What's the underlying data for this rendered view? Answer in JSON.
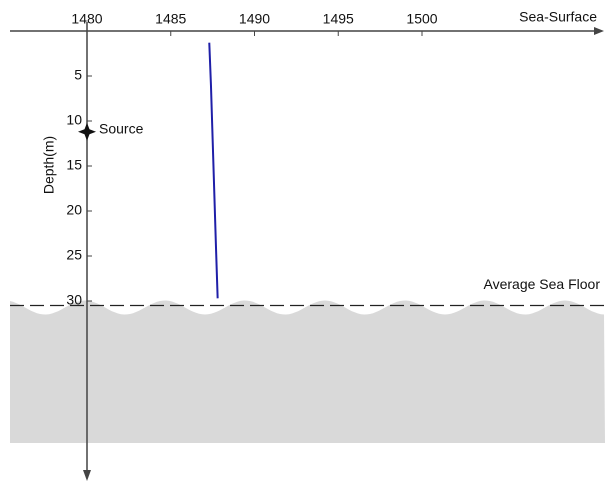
{
  "chart_data": {
    "type": "line",
    "x_axis_label": "Sea-Surface",
    "y_axis_label": "Depth(m)",
    "x": [
      1487.3,
      1487.4,
      1487.5,
      1487.6,
      1487.7,
      1487.8
    ],
    "series": [
      {
        "color": "#1f1fa8",
        "values": [
          1.3,
          6,
          12,
          18,
          24,
          29.7
        ]
      }
    ],
    "xlim": [
      1480,
      1500
    ],
    "xticks": [
      1480,
      1485,
      1490,
      1495,
      1500
    ],
    "ylim": [
      0,
      30
    ],
    "yticks": [
      5,
      10,
      15,
      20,
      25,
      30
    ],
    "y_inverted": true,
    "source": {
      "label": "Source",
      "x": 1480,
      "depth": 11.2
    },
    "sea_floor": {
      "label": "Average Sea Floor",
      "depth": 30.5
    }
  }
}
